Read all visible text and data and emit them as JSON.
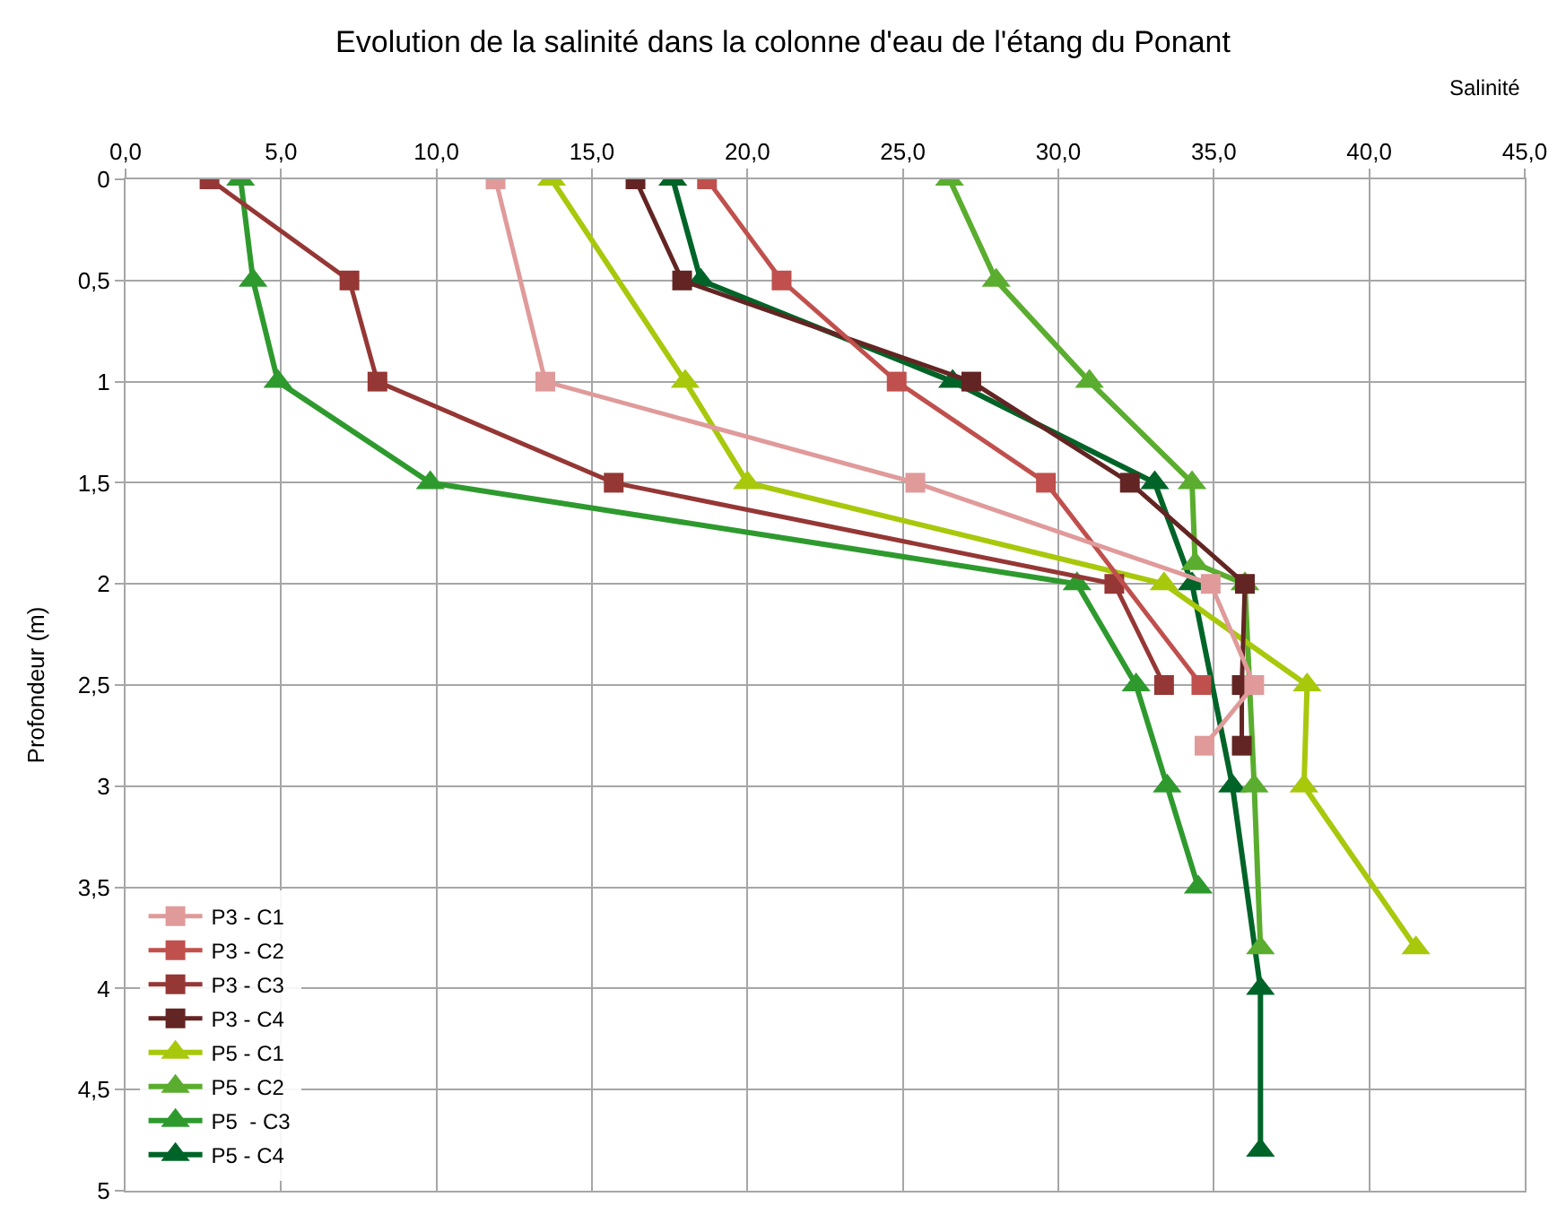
{
  "chart_data": {
    "type": "line",
    "title": "Evolution de la salinité dans la colonne d'eau de l'étang du Ponant",
    "xlabel": "Salinité",
    "ylabel": "Profondeur (m)",
    "xlim": [
      0,
      45
    ],
    "xticks": [
      {
        "value": 0,
        "label": "0,0"
      },
      {
        "value": 5,
        "label": "5,0"
      },
      {
        "value": 10,
        "label": "10,0"
      },
      {
        "value": 15,
        "label": "15,0"
      },
      {
        "value": 20,
        "label": "20,0"
      },
      {
        "value": 25,
        "label": "25,0"
      },
      {
        "value": 30,
        "label": "30,0"
      },
      {
        "value": 35,
        "label": "35,0"
      },
      {
        "value": 40,
        "label": "40,0"
      },
      {
        "value": 45,
        "label": "45,0"
      }
    ],
    "ylim": [
      5,
      0
    ],
    "yticks": [
      0,
      {
        "value": 0.5,
        "label": "0,5"
      },
      1,
      {
        "value": 1.5,
        "label": "1,5"
      },
      2,
      {
        "value": 2.5,
        "label": "2,5"
      },
      3,
      {
        "value": 3.5,
        "label": "3,5"
      },
      4,
      {
        "value": 4.5,
        "label": "4,5"
      },
      5
    ],
    "grid": true,
    "legend": "bottom left",
    "series": [
      {
        "name": "P3 - C1",
        "color": "#e09a9a",
        "marker": "square",
        "x": [
          11.9,
          13.5,
          25.4,
          34.9,
          36.3,
          34.7
        ],
        "values": [
          0,
          1,
          1.5,
          2,
          2.5,
          2.8
        ]
      },
      {
        "name": "P3 - C2",
        "color": "#c0504d",
        "marker": "square",
        "x": [
          18.7,
          21.1,
          24.8,
          29.6,
          34.0,
          34.6
        ],
        "values": [
          0,
          0.5,
          1,
          1.5,
          null,
          2.5
        ]
      },
      {
        "name": "P3 - C3",
        "color": "#953735",
        "marker": "square",
        "x": [
          2.7,
          7.2,
          8.1,
          15.7,
          31.8,
          33.4
        ],
        "values": [
          0,
          0.5,
          1,
          1.5,
          2,
          2.5
        ]
      },
      {
        "name": "P3 - C4",
        "color": "#632523",
        "marker": "square",
        "x": [
          16.4,
          17.9,
          27.2,
          32.3,
          36.0,
          35.9,
          35.9
        ],
        "values": [
          0,
          0.5,
          1,
          1.5,
          2,
          2.5,
          2.8
        ]
      },
      {
        "name": "P5 - C1",
        "color": "#a8c80c",
        "marker": "triangle",
        "x": [
          13.7,
          18.0,
          20.0,
          33.4,
          38.0,
          37.9,
          41.5
        ],
        "values": [
          0,
          1,
          1.5,
          2,
          2.5,
          3,
          3.8
        ]
      },
      {
        "name": "P5 - C2",
        "color": "#5aad2e",
        "marker": "triangle",
        "x": [
          26.5,
          28.0,
          31.0,
          34.3,
          34.4,
          36.0,
          36.3,
          36.5
        ],
        "values": [
          0,
          0.5,
          1,
          1.5,
          1.9,
          2,
          3,
          3.8
        ]
      },
      {
        "name": "P5  - C3",
        "color": "#2e9a2e",
        "marker": "triangle",
        "x": [
          3.7,
          4.1,
          4.9,
          9.8,
          30.6,
          32.5,
          33.5,
          34.5
        ],
        "values": [
          0,
          0.5,
          1,
          1.5,
          2,
          2.5,
          3,
          3.5
        ]
      },
      {
        "name": "P5 - C4",
        "color": "#006428",
        "marker": "triangle",
        "x": [
          17.6,
          18.5,
          26.6,
          33.1,
          34.3,
          35.6,
          36.5,
          36.5
        ],
        "values": [
          0,
          0.5,
          1,
          1.5,
          2,
          3,
          4,
          4.8
        ]
      }
    ]
  }
}
